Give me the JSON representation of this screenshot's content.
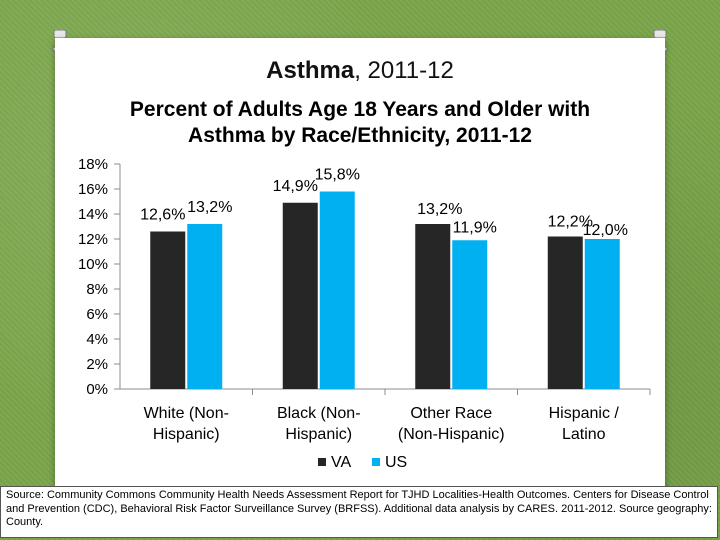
{
  "slide": {
    "title_bold": "Asthma",
    "title_rest": ", 2011-12"
  },
  "colors": {
    "VA": "#262626",
    "US": "#00b0f0",
    "axis": "#8c8c8c",
    "background": "#7aa64a"
  },
  "chart_data": {
    "type": "bar",
    "title": "Percent of Adults Age 18 Years and Older with Asthma by Race/Ethnicity, 2011-12",
    "title_lines": [
      "Percent of Adults Age 18 Years and Older with",
      "Asthma by Race/Ethnicity, 2011-12"
    ],
    "categories": [
      "White (Non-Hispanic)",
      "Black (Non-Hispanic)",
      "Other Race (Non-Hispanic)",
      "Hispanic / Latino"
    ],
    "category_lines": [
      [
        "White (Non-",
        "Hispanic)"
      ],
      [
        "Black (Non-",
        "Hispanic)"
      ],
      [
        "Other Race",
        "(Non-Hispanic)"
      ],
      [
        "Hispanic /",
        "Latino"
      ]
    ],
    "series": [
      {
        "name": "VA",
        "values": [
          12.6,
          14.9,
          13.2,
          12.2
        ],
        "labels": [
          "12,6%",
          "14,9%",
          "13,2%",
          "12,2%"
        ]
      },
      {
        "name": "US",
        "values": [
          13.2,
          15.8,
          11.9,
          12.0
        ],
        "labels": [
          "13,2%",
          "15,8%",
          "11,9%",
          "12,0%"
        ]
      }
    ],
    "ylim": [
      0,
      18
    ],
    "yticks": [
      0,
      2,
      4,
      6,
      8,
      10,
      12,
      14,
      16,
      18
    ],
    "ytick_labels": [
      "0%",
      "2%",
      "4%",
      "6%",
      "8%",
      "10%",
      "12%",
      "14%",
      "16%",
      "18%"
    ],
    "legend": "bottom",
    "grid": false,
    "xlabel": "",
    "ylabel": ""
  },
  "source": "Source: Community Commons Community Health Needs Assessment Report for TJHD Localities-Health Outcomes. Centers for Disease Control and Prevention (CDC), Behavioral Risk Factor Surveillance Survey (BRFSS). Additional data analysis by CARES. 2011-2012. Source geography: County."
}
